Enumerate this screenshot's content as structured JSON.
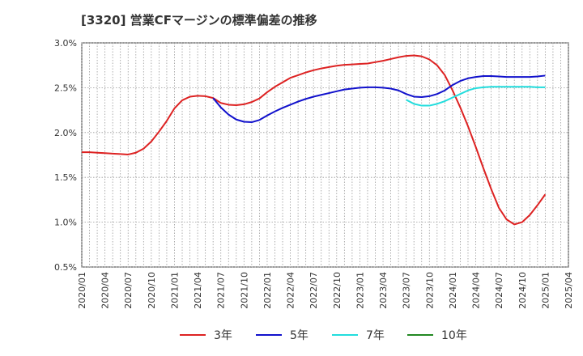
{
  "chart_data": {
    "type": "line",
    "title": "[3320]  営業CFマージンの標準偏差の推移",
    "xlabel": "",
    "ylabel": "",
    "x_tick_labels": [
      "2020/01",
      "2020/04",
      "2020/07",
      "2020/10",
      "2021/01",
      "2021/04",
      "2021/07",
      "2021/10",
      "2022/01",
      "2022/04",
      "2022/07",
      "2022/10",
      "2023/01",
      "2023/04",
      "2023/07",
      "2023/10",
      "2024/01",
      "2024/04",
      "2024/07",
      "2024/10",
      "2025/01",
      "2025/04"
    ],
    "y_tick_labels": [
      "0.5%",
      "1.0%",
      "1.5%",
      "2.0%",
      "2.5%",
      "3.0%"
    ],
    "y_ticks": [
      0.5,
      1.0,
      1.5,
      2.0,
      2.5,
      3.0
    ],
    "ylim": [
      0.5,
      3.0
    ],
    "x_start": "2020-01",
    "x_end": "2025-04",
    "grid": true,
    "legend_position": "bottom",
    "series": [
      {
        "name": "3年",
        "color": "#dd2222",
        "points": [
          [
            "2020-01",
            1.78
          ],
          [
            "2020-02",
            1.78
          ],
          [
            "2020-03",
            1.775
          ],
          [
            "2020-04",
            1.77
          ],
          [
            "2020-05",
            1.765
          ],
          [
            "2020-06",
            1.76
          ],
          [
            "2020-07",
            1.755
          ],
          [
            "2020-08",
            1.775
          ],
          [
            "2020-09",
            1.82
          ],
          [
            "2020-10",
            1.9
          ],
          [
            "2020-11",
            2.01
          ],
          [
            "2020-12",
            2.13
          ],
          [
            "2021-01",
            2.27
          ],
          [
            "2021-02",
            2.36
          ],
          [
            "2021-03",
            2.4
          ],
          [
            "2021-04",
            2.41
          ],
          [
            "2021-05",
            2.405
          ],
          [
            "2021-06",
            2.385
          ],
          [
            "2021-07",
            2.33
          ],
          [
            "2021-08",
            2.31
          ],
          [
            "2021-09",
            2.305
          ],
          [
            "2021-10",
            2.315
          ],
          [
            "2021-11",
            2.34
          ],
          [
            "2021-12",
            2.38
          ],
          [
            "2022-01",
            2.45
          ],
          [
            "2022-02",
            2.51
          ],
          [
            "2022-03",
            2.56
          ],
          [
            "2022-04",
            2.61
          ],
          [
            "2022-05",
            2.64
          ],
          [
            "2022-06",
            2.67
          ],
          [
            "2022-07",
            2.695
          ],
          [
            "2022-08",
            2.715
          ],
          [
            "2022-09",
            2.73
          ],
          [
            "2022-10",
            2.745
          ],
          [
            "2022-11",
            2.755
          ],
          [
            "2022-12",
            2.76
          ],
          [
            "2023-01",
            2.765
          ],
          [
            "2023-02",
            2.77
          ],
          [
            "2023-03",
            2.785
          ],
          [
            "2023-04",
            2.8
          ],
          [
            "2023-05",
            2.82
          ],
          [
            "2023-06",
            2.84
          ],
          [
            "2023-07",
            2.855
          ],
          [
            "2023-08",
            2.86
          ],
          [
            "2023-09",
            2.85
          ],
          [
            "2023-10",
            2.815
          ],
          [
            "2023-11",
            2.75
          ],
          [
            "2023-12",
            2.64
          ],
          [
            "2024-01",
            2.47
          ],
          [
            "2024-02",
            2.28
          ],
          [
            "2024-03",
            2.07
          ],
          [
            "2024-04",
            1.84
          ],
          [
            "2024-05",
            1.6
          ],
          [
            "2024-06",
            1.37
          ],
          [
            "2024-07",
            1.16
          ],
          [
            "2024-08",
            1.03
          ],
          [
            "2024-09",
            0.975
          ],
          [
            "2024-10",
            1.0
          ],
          [
            "2024-11",
            1.08
          ],
          [
            "2024-12",
            1.19
          ],
          [
            "2025-01",
            1.31
          ]
        ]
      },
      {
        "name": "5年",
        "color": "#1111cc",
        "points": [
          [
            "2021-06",
            2.385
          ],
          [
            "2021-07",
            2.28
          ],
          [
            "2021-08",
            2.2
          ],
          [
            "2021-09",
            2.145
          ],
          [
            "2021-10",
            2.12
          ],
          [
            "2021-11",
            2.115
          ],
          [
            "2021-12",
            2.14
          ],
          [
            "2022-01",
            2.19
          ],
          [
            "2022-02",
            2.235
          ],
          [
            "2022-03",
            2.275
          ],
          [
            "2022-04",
            2.31
          ],
          [
            "2022-05",
            2.345
          ],
          [
            "2022-06",
            2.375
          ],
          [
            "2022-07",
            2.4
          ],
          [
            "2022-08",
            2.42
          ],
          [
            "2022-09",
            2.44
          ],
          [
            "2022-10",
            2.46
          ],
          [
            "2022-11",
            2.48
          ],
          [
            "2022-12",
            2.49
          ],
          [
            "2023-01",
            2.5
          ],
          [
            "2023-02",
            2.505
          ],
          [
            "2023-03",
            2.505
          ],
          [
            "2023-04",
            2.5
          ],
          [
            "2023-05",
            2.49
          ],
          [
            "2023-06",
            2.47
          ],
          [
            "2023-07",
            2.43
          ],
          [
            "2023-08",
            2.4
          ],
          [
            "2023-09",
            2.395
          ],
          [
            "2023-10",
            2.405
          ],
          [
            "2023-11",
            2.43
          ],
          [
            "2023-12",
            2.47
          ],
          [
            "2024-01",
            2.53
          ],
          [
            "2024-02",
            2.575
          ],
          [
            "2024-03",
            2.605
          ],
          [
            "2024-04",
            2.62
          ],
          [
            "2024-05",
            2.63
          ],
          [
            "2024-06",
            2.63
          ],
          [
            "2024-07",
            2.625
          ],
          [
            "2024-08",
            2.62
          ],
          [
            "2024-09",
            2.62
          ],
          [
            "2024-10",
            2.62
          ],
          [
            "2024-11",
            2.62
          ],
          [
            "2024-12",
            2.625
          ],
          [
            "2025-01",
            2.635
          ]
        ]
      },
      {
        "name": "7年",
        "color": "#22dddd",
        "points": [
          [
            "2023-07",
            2.365
          ],
          [
            "2023-08",
            2.32
          ],
          [
            "2023-09",
            2.3
          ],
          [
            "2023-10",
            2.3
          ],
          [
            "2023-11",
            2.32
          ],
          [
            "2023-12",
            2.35
          ],
          [
            "2024-01",
            2.39
          ],
          [
            "2024-02",
            2.43
          ],
          [
            "2024-03",
            2.47
          ],
          [
            "2024-04",
            2.495
          ],
          [
            "2024-05",
            2.505
          ],
          [
            "2024-06",
            2.51
          ],
          [
            "2024-07",
            2.51
          ],
          [
            "2024-08",
            2.51
          ],
          [
            "2024-09",
            2.51
          ],
          [
            "2024-10",
            2.51
          ],
          [
            "2024-11",
            2.51
          ],
          [
            "2024-12",
            2.505
          ],
          [
            "2025-01",
            2.505
          ]
        ]
      },
      {
        "name": "10年",
        "color": "#228822",
        "points": []
      }
    ]
  }
}
